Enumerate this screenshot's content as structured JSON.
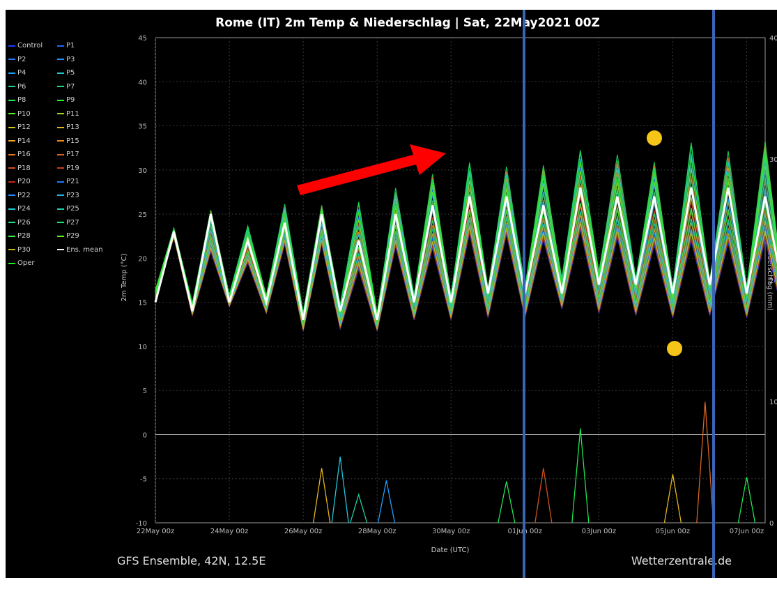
{
  "chart_data": {
    "type": "line",
    "title": "Rome  (IT)  2m Temp & Niederschlag | Sat, 22May2021 00Z",
    "xlabel": "Date (UTC)",
    "ylabel": "2m Temp (°C)",
    "ylabel_right": "Niederschlag (mm)",
    "footer_left": "GFS Ensemble, 42N, 12.5E",
    "footer_right": "Wetterzentrale.de",
    "x_ticks": [
      "22May 00z",
      "24May 00z",
      "26May 00z",
      "28May 00z",
      "30May 00z",
      "01Jun 00z",
      "03Jun 00z",
      "05Jun 00z",
      "07Jun 00z"
    ],
    "x_range_hours": [
      0,
      396
    ],
    "ylim": [
      -10,
      45
    ],
    "y_ticks": [
      -10,
      -5,
      0,
      5,
      10,
      15,
      20,
      25,
      30,
      35,
      40,
      45
    ],
    "ylim_right": [
      0,
      40
    ],
    "y_ticks_right": [
      0,
      10,
      20,
      30,
      40
    ],
    "grid": true,
    "legend_placement": "left",
    "legend": [
      {
        "name": "Control",
        "color": "#1e3cff"
      },
      {
        "name": "P1",
        "color": "#1e64ff"
      },
      {
        "name": "P2",
        "color": "#2a78ff"
      },
      {
        "name": "P3",
        "color": "#1e90ff"
      },
      {
        "name": "P4",
        "color": "#1ea0ff"
      },
      {
        "name": "P5",
        "color": "#1ec8c8"
      },
      {
        "name": "P6",
        "color": "#1ed2a0"
      },
      {
        "name": "P7",
        "color": "#1edc78"
      },
      {
        "name": "P8",
        "color": "#1ee650"
      },
      {
        "name": "P9",
        "color": "#28f028"
      },
      {
        "name": "P10",
        "color": "#50f01e"
      },
      {
        "name": "P11",
        "color": "#a0d21e"
      },
      {
        "name": "P12",
        "color": "#d2c81e"
      },
      {
        "name": "P13",
        "color": "#e6b41e"
      },
      {
        "name": "P14",
        "color": "#f0a01e"
      },
      {
        "name": "P15",
        "color": "#f08c1e"
      },
      {
        "name": "P16",
        "color": "#e6781e"
      },
      {
        "name": "P17",
        "color": "#dc641e"
      },
      {
        "name": "P18",
        "color": "#d2501e"
      },
      {
        "name": "P19",
        "color": "#c83c1e"
      },
      {
        "name": "P20",
        "color": "#be281e"
      },
      {
        "name": "P21",
        "color": "#1e78ff"
      },
      {
        "name": "P22",
        "color": "#1e8cff"
      },
      {
        "name": "P23",
        "color": "#1eb4e6"
      },
      {
        "name": "P24",
        "color": "#1ec8dc"
      },
      {
        "name": "P25",
        "color": "#1ed2b4"
      },
      {
        "name": "P26",
        "color": "#1edc8c"
      },
      {
        "name": "P27",
        "color": "#1ee664"
      },
      {
        "name": "P28",
        "color": "#3cf03c"
      },
      {
        "name": "P29",
        "color": "#64f01e"
      },
      {
        "name": "P30",
        "color": "#c8b41e"
      },
      {
        "name": "Ens. mean",
        "color": "#ffffff"
      },
      {
        "name": "Oper",
        "color": "#1ef01e"
      }
    ],
    "series_summary": {
      "description_hours": "diurnal cycle sampled every 12h starting 22May 00z",
      "ens_mean_temp": [
        15.0,
        23,
        14,
        25,
        15,
        22,
        15,
        24,
        13,
        25,
        14,
        22,
        13,
        25,
        15,
        26,
        15,
        27,
        16,
        27,
        16,
        26,
        16,
        28,
        17,
        27,
        17,
        27,
        16,
        28,
        17,
        28,
        16,
        27,
        16
      ],
      "upper_envelope_temp": [
        16.5,
        23.5,
        15,
        26,
        16,
        24,
        16,
        26.5,
        14,
        26.5,
        15,
        27,
        14,
        28.5,
        16,
        30.5,
        16,
        31.5,
        17,
        31,
        17,
        31.5,
        18,
        33,
        19,
        32.5,
        18,
        32,
        17,
        34,
        18,
        33,
        17,
        34.5,
        17
      ],
      "lower_envelope_temp": [
        15,
        22,
        13,
        19,
        14,
        18,
        13,
        20,
        11,
        20,
        11,
        16,
        11,
        19,
        12,
        18,
        12,
        20,
        12,
        20,
        12,
        19,
        13,
        20,
        12,
        19,
        12,
        18,
        12,
        18,
        12,
        18,
        12,
        18,
        12
      ]
    },
    "annotations": {
      "arrow": "red arrow pointing up-right",
      "highlight_box": "blue rectangle around 01Jun-07Jun",
      "markers": "two yellow dots near 05Jun max and min"
    }
  }
}
